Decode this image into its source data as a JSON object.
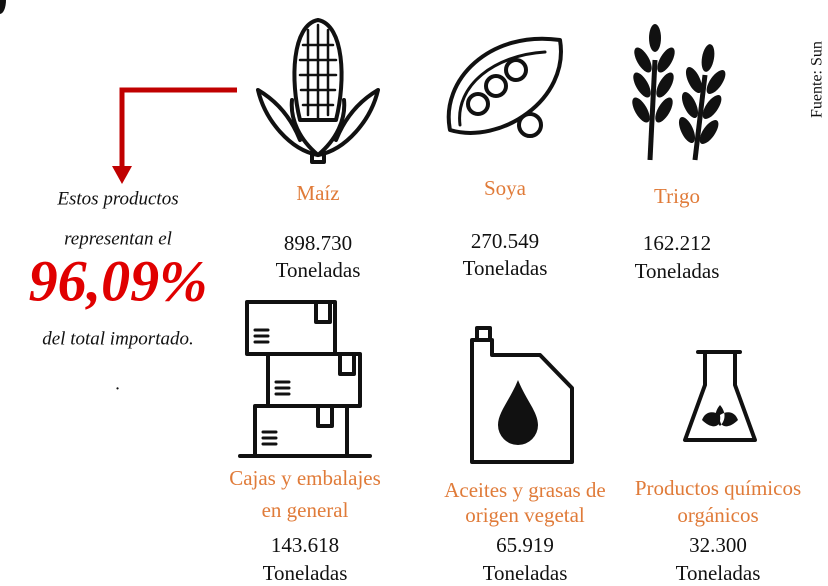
{
  "source": "Fuente: Sun",
  "callout": {
    "line1": "Estos productos",
    "line2": "representan el",
    "percent": "96,09%",
    "line3": "del total importado.",
    "dot": "."
  },
  "products": [
    {
      "name": [
        "Maíz"
      ],
      "amount": "898.730",
      "unit": "Toneladas"
    },
    {
      "name": [
        "Soya"
      ],
      "amount": "270.549",
      "unit": "Toneladas"
    },
    {
      "name": [
        "Trigo"
      ],
      "amount": "162.212",
      "unit": "Toneladas"
    },
    {
      "name": [
        "Cajas y embalajes",
        "en general"
      ],
      "amount": "143.618",
      "unit": "Toneladas"
    },
    {
      "name": [
        "Aceites y grasas de",
        "origen vegetal"
      ],
      "amount": "65.919",
      "unit": "Toneladas"
    },
    {
      "name": [
        "Productos químicos",
        "orgánicos"
      ],
      "amount": "32.300",
      "unit": "Toneladas"
    }
  ]
}
